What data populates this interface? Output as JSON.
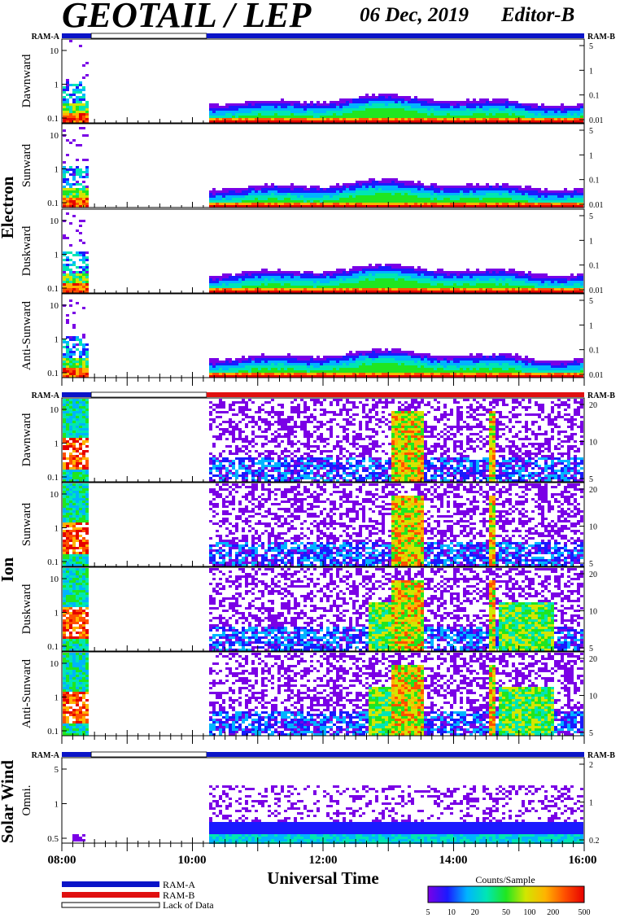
{
  "header": {
    "title": "GEOTAIL / LEP",
    "date": "06 Dec, 2019",
    "editor": "Editor-B"
  },
  "colors": {
    "ram_a": "#0a14c8",
    "ram_b": "#e01010",
    "lack": "#ffffff",
    "axis": "#000000"
  },
  "chart_data": {
    "type": "heatmap",
    "x_axis": {
      "title": "Universal Time",
      "range": [
        "08:00",
        "16:00"
      ],
      "ticks": [
        "08:00",
        "10:00",
        "12:00",
        "14:00",
        "16:00"
      ]
    },
    "ram_labels": {
      "left": "RAM-A",
      "right": "RAM-B"
    },
    "data_gap": {
      "start": "08:27",
      "end": "10:13"
    },
    "groups": [
      {
        "name": "Electron",
        "ram_bar": [
          {
            "start": "08:00",
            "end": "08:27",
            "mode": "ram_a"
          },
          {
            "start": "08:27",
            "end": "10:13",
            "mode": "lack"
          },
          {
            "start": "10:13",
            "end": "16:00",
            "mode": "ram_a"
          }
        ],
        "panels": [
          {
            "label": "Dawnward",
            "left_ticks": [
              "10",
              "1",
              "0.1"
            ],
            "right_ticks": [
              "5",
              "1",
              "0.1",
              "0.01"
            ]
          },
          {
            "label": "Sunward",
            "left_ticks": [
              "10",
              "1",
              "0.1"
            ],
            "right_ticks": [
              "5",
              "1",
              "0.1",
              "0.01"
            ]
          },
          {
            "label": "Duskward",
            "left_ticks": [
              "10",
              "1",
              "0.1"
            ],
            "right_ticks": [
              "5",
              "1",
              "0.1",
              "0.01"
            ]
          },
          {
            "label": "Anti-Sunward",
            "left_ticks": [
              "10",
              "1",
              "0.1"
            ],
            "right_ticks": [
              "5",
              "1",
              "0.1",
              "0.01"
            ]
          }
        ]
      },
      {
        "name": "Ion",
        "ram_bar": [
          {
            "start": "08:00",
            "end": "08:27",
            "mode": "ram_a"
          },
          {
            "start": "08:27",
            "end": "10:13",
            "mode": "lack"
          },
          {
            "start": "10:13",
            "end": "16:00",
            "mode": "ram_b"
          }
        ],
        "panels": [
          {
            "label": "Dawnward",
            "left_ticks": [
              "10",
              "1",
              "0.1"
            ],
            "right_ticks": [
              "20",
              "10",
              "5"
            ]
          },
          {
            "label": "Sunward",
            "left_ticks": [
              "10",
              "1",
              "0.1"
            ],
            "right_ticks": [
              "20",
              "10",
              "5"
            ]
          },
          {
            "label": "Duskward",
            "left_ticks": [
              "10",
              "1",
              "0.1"
            ],
            "right_ticks": [
              "20",
              "10",
              "5"
            ]
          },
          {
            "label": "Anti-Sunward",
            "left_ticks": [
              "10",
              "1",
              "0.1"
            ],
            "right_ticks": [
              "20",
              "10",
              "5"
            ]
          }
        ]
      },
      {
        "name": "Solar Wind",
        "ram_bar": [
          {
            "start": "08:00",
            "end": "08:27",
            "mode": "ram_a"
          },
          {
            "start": "08:27",
            "end": "10:13",
            "mode": "lack"
          },
          {
            "start": "10:13",
            "end": "16:00",
            "mode": "ram_a"
          }
        ],
        "panels": [
          {
            "label": "Omni.",
            "left_ticks": [
              "5",
              "1",
              "0.5"
            ],
            "right_ticks": [
              "2",
              "1",
              "0.2"
            ]
          }
        ]
      }
    ],
    "legend": [
      {
        "mode": "ram_a",
        "label": "RAM-A"
      },
      {
        "mode": "ram_b",
        "label": "RAM-B"
      },
      {
        "mode": "lack",
        "label": "Lack of Data"
      }
    ],
    "colorbar": {
      "title": "Counts/Sample",
      "ticks": [
        "5",
        "10",
        "20",
        "50",
        "100",
        "200",
        "500"
      ],
      "colors": [
        "#7a00e6",
        "#1a1aff",
        "#00b4ff",
        "#00e6b4",
        "#20e620",
        "#d2e600",
        "#ffb400",
        "#ff5000",
        "#e60000"
      ]
    }
  }
}
